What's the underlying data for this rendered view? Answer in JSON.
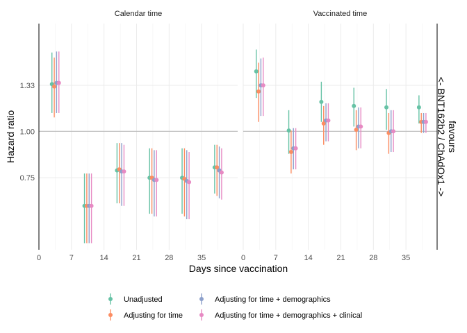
{
  "chart_data": {
    "type": "scatter",
    "subtype": "point-range, faceted, log y-scale",
    "ylabel": "Hazard ratio",
    "xlabel": "Days since vaccination",
    "side_label_line1": "favours",
    "side_label_line2": "<- BNT162b2 / ChAdOx1 ->",
    "y_scale": "log",
    "ylim": [
      0.48,
      1.95
    ],
    "y_ticks": [
      0.75,
      1.0,
      1.33
    ],
    "y_tick_labels": [
      "0.75",
      "1.00",
      "1.33"
    ],
    "reference_line": 1.0,
    "xlim": [
      0,
      42
    ],
    "x_ticks": [
      0,
      7,
      14,
      21,
      28,
      35
    ],
    "x_tick_labels": [
      "0",
      "7",
      "14",
      "21",
      "28",
      "35"
    ],
    "grid": true,
    "legend_position": "bottom",
    "series": [
      {
        "name": "Unadjusted",
        "color": "#66c2a5"
      },
      {
        "name": "Adjusting for time",
        "color": "#fc8d62"
      },
      {
        "name": "Adjusting for time + demographics",
        "color": "#8da0cb"
      },
      {
        "name": "Adjusting for time + demographics + clinical",
        "color": "#e78ac3"
      }
    ],
    "panels": [
      {
        "title": "Calendar time",
        "groups": [
          {
            "x": [
              2.8,
              3.3,
              3.8,
              4.3
            ],
            "est": [
              1.34,
              1.32,
              1.35,
              1.35
            ],
            "lo": [
              1.12,
              1.09,
              1.12,
              1.12
            ],
            "hi": [
              1.63,
              1.58,
              1.64,
              1.64
            ]
          },
          {
            "x": [
              9.8,
              10.3,
              10.8,
              11.3
            ],
            "est": [
              0.63,
              0.63,
              0.63,
              0.63
            ],
            "lo": [
              0.5,
              0.5,
              0.5,
              0.5
            ],
            "hi": [
              0.77,
              0.77,
              0.77,
              0.77
            ]
          },
          {
            "x": [
              16.8,
              17.3,
              17.8,
              18.3
            ],
            "est": [
              0.785,
              0.79,
              0.78,
              0.78
            ],
            "lo": [
              0.64,
              0.64,
              0.63,
              0.63
            ],
            "hi": [
              0.93,
              0.93,
              0.93,
              0.92
            ]
          },
          {
            "x": [
              23.8,
              24.3,
              24.8,
              25.3
            ],
            "est": [
              0.75,
              0.75,
              0.74,
              0.74
            ],
            "lo": [
              0.6,
              0.6,
              0.59,
              0.59
            ],
            "hi": [
              0.9,
              0.9,
              0.89,
              0.89
            ]
          },
          {
            "x": [
              30.8,
              31.3,
              31.8,
              32.3
            ],
            "est": [
              0.75,
              0.745,
              0.735,
              0.73
            ],
            "lo": [
              0.6,
              0.59,
              0.58,
              0.58
            ],
            "hi": [
              0.9,
              0.9,
              0.89,
              0.88
            ]
          },
          {
            "x": [
              37.8,
              38.3,
              38.8,
              39.3
            ],
            "est": [
              0.8,
              0.8,
              0.785,
              0.775
            ],
            "lo": [
              0.68,
              0.67,
              0.66,
              0.655
            ],
            "hi": [
              0.92,
              0.92,
              0.91,
              0.9
            ]
          }
        ]
      },
      {
        "title": "Vaccinated time",
        "groups": [
          {
            "x": [
              2.8,
              3.3,
              3.8,
              4.3
            ],
            "est": [
              1.45,
              1.28,
              1.33,
              1.33
            ],
            "lo": [
              1.23,
              1.06,
              1.1,
              1.1
            ],
            "hi": [
              1.66,
              1.53,
              1.57,
              1.58
            ]
          },
          {
            "x": [
              9.8,
              10.3,
              10.8,
              11.3
            ],
            "est": [
              1.005,
              0.88,
              0.9,
              0.9
            ],
            "lo": [
              0.87,
              0.77,
              0.79,
              0.79
            ],
            "hi": [
              1.14,
              1.005,
              1.02,
              1.02
            ]
          },
          {
            "x": [
              16.8,
              17.3,
              17.8,
              18.3
            ],
            "est": [
              1.2,
              1.05,
              1.07,
              1.07
            ],
            "lo": [
              1.06,
              0.92,
              0.94,
              0.94
            ],
            "hi": [
              1.36,
              1.17,
              1.19,
              1.19
            ]
          },
          {
            "x": [
              23.8,
              24.3,
              24.8,
              25.3
            ],
            "est": [
              1.17,
              1.01,
              1.03,
              1.03
            ],
            "lo": [
              1.03,
              0.89,
              0.9,
              0.9
            ],
            "hi": [
              1.31,
              1.14,
              1.16,
              1.16
            ]
          },
          {
            "x": [
              30.8,
              31.3,
              31.8,
              32.3
            ],
            "est": [
              1.16,
              0.99,
              1.0,
              1.0
            ],
            "lo": [
              1.01,
              0.87,
              0.88,
              0.88
            ],
            "hi": [
              1.3,
              1.12,
              1.14,
              1.14
            ]
          },
          {
            "x": [
              37.8,
              38.3,
              38.8,
              39.3
            ],
            "est": [
              1.16,
              1.06,
              1.06,
              1.06
            ],
            "lo": [
              1.05,
              0.99,
              0.99,
              0.99
            ],
            "hi": [
              1.25,
              1.12,
              1.12,
              1.12
            ]
          }
        ]
      }
    ]
  }
}
